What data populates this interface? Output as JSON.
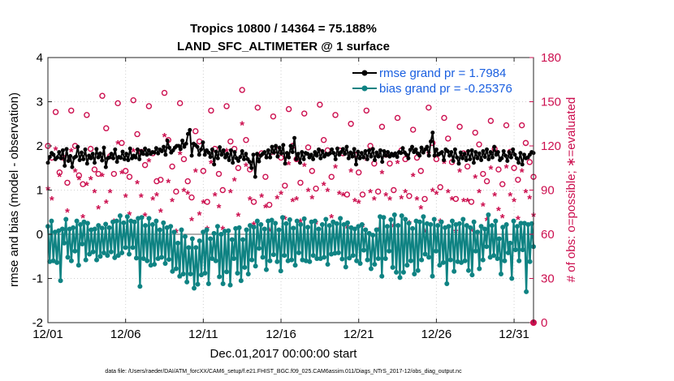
{
  "chart_data": {
    "type": "line",
    "title": "Tropics 10800 / 14364 = 75.188%",
    "subtitle": "LAND_SFC_ALTIMETER @ 1 surface",
    "xlabel": "Dec.01,2017 00:00:00 start",
    "ylabel": "rmse and bias (model - observation)",
    "y2label": "# of obs: o=possible; ∗=evaluated",
    "x_ticks": [
      "12/01",
      "12/06",
      "12/11",
      "12/16",
      "12/21",
      "12/26",
      "12/31"
    ],
    "x_tick_days": [
      0,
      5,
      10,
      15,
      20,
      25,
      30
    ],
    "x_range_days": [
      0,
      31.25
    ],
    "ylim": [
      -2,
      4
    ],
    "yticks": [
      -2,
      -1,
      0,
      1,
      2,
      3,
      4
    ],
    "y2lim": [
      0,
      180
    ],
    "y2ticks": [
      0,
      30,
      60,
      90,
      120,
      150,
      180
    ],
    "zero_line": 0,
    "footnote": "data file: /Users/raeder/DAI/ATM_forcXX/CAM6_setup/f.e21.FHIST_BGC.f09_025.CAM6assim.011/Diags_NTrS_2017-12/obs_diag_output.nc",
    "series": [
      {
        "name": "rmse grand pr = 1.7984",
        "color": "#000000",
        "marker": "filled-circle",
        "axis": "left",
        "values": [
          1.62,
          1.75,
          1.84,
          1.8,
          1.7,
          1.74,
          1.86,
          1.72,
          1.9,
          1.55,
          1.93,
          1.66,
          1.77,
          1.52,
          1.73,
          1.76,
          1.98,
          1.68,
          1.85,
          1.7,
          1.92,
          1.6,
          1.78,
          1.72,
          1.82,
          1.62,
          1.93,
          1.74,
          1.83,
          1.67,
          1.96,
          1.52,
          1.72,
          1.74,
          1.82,
          1.72,
          1.92,
          1.64,
          1.75,
          1.73,
          1.87,
          1.7,
          1.82,
          1.68,
          1.94,
          1.72,
          1.78,
          1.74,
          1.92,
          1.7,
          1.88,
          1.82,
          1.94,
          1.8,
          1.9,
          1.82,
          1.86,
          1.85,
          1.95,
          1.83,
          1.92,
          1.88,
          1.98,
          1.8,
          2.12,
          1.96,
          1.85,
          1.9,
          1.96,
          2.0,
          2.0,
          1.93,
          2.12,
          1.98,
          2.05,
          2.27,
          2.36,
          1.78,
          2.05,
          2.02,
          1.98,
          1.8,
          1.92,
          2.08,
          1.8,
          1.9,
          1.85,
          1.75,
          1.92,
          1.58,
          1.87,
          1.72,
          1.97,
          1.8,
          1.9,
          1.74,
          1.82,
          1.68,
          1.9,
          1.62,
          1.86,
          1.72,
          1.66,
          1.75,
          1.88,
          1.7,
          1.82,
          1.7,
          1.64,
          1.5,
          1.8,
          1.3,
          1.82,
          1.65,
          1.78,
          1.82,
          1.86,
          1.74,
          1.9,
          1.74,
          1.98,
          1.85,
          2.0,
          1.76,
          1.96,
          1.83,
          2.02,
          1.6,
          1.84,
          1.74,
          2.0,
          1.86,
          2.18,
          1.7,
          1.82,
          1.62,
          1.86,
          1.7,
          1.84,
          1.82,
          1.74,
          1.8,
          1.7,
          1.86,
          1.78,
          1.92,
          1.72,
          1.88,
          1.76,
          1.82,
          1.8,
          1.83,
          1.92,
          1.84,
          1.7,
          1.94,
          1.8,
          1.86,
          1.93,
          1.82,
          1.98,
          1.72,
          1.85,
          1.76,
          1.93,
          1.58,
          1.87,
          1.72,
          1.84,
          1.74,
          1.88,
          1.7,
          1.9,
          1.76,
          1.93,
          1.68,
          1.85,
          1.76,
          1.9,
          1.64,
          1.88,
          1.78,
          1.86,
          1.76,
          1.82,
          1.78,
          1.83,
          1.75,
          1.86,
          1.84,
          1.95,
          1.85,
          1.8,
          1.72,
          1.91,
          1.98,
          1.86,
          1.92,
          1.83,
          1.78,
          1.96,
          1.85,
          1.92,
          1.98,
          1.78,
          2.1,
          2.3,
          1.78,
          1.92,
          1.8,
          1.83,
          1.86,
          1.68,
          1.92,
          1.88,
          1.78,
          1.86,
          1.66,
          1.92,
          1.74,
          1.6,
          1.85,
          1.72,
          1.82,
          1.68,
          1.88,
          1.7,
          1.9,
          1.62,
          1.86,
          1.72,
          1.83,
          1.68,
          1.88,
          1.75,
          1.92,
          1.7,
          1.86,
          1.74,
          1.98,
          1.8,
          1.86,
          1.68,
          1.72,
          1.88,
          1.78,
          1.66,
          1.86,
          1.74,
          1.92,
          1.8,
          1.72,
          1.62,
          1.84,
          1.58,
          1.8,
          1.72,
          1.74,
          1.8,
          1.86,
          1.84
        ]
      },
      {
        "name": "bias grand pr = -0.25376",
        "color": "#0f8383",
        "marker": "filled-circle",
        "axis": "left",
        "values": [
          0.18,
          -0.62,
          0.3,
          -0.6,
          0.05,
          -0.64,
          0.08,
          -1.05,
          0.12,
          -0.2,
          0.34,
          -0.52,
          0.12,
          -0.6,
          0.15,
          -0.38,
          0.3,
          -0.7,
          0.22,
          -0.22,
          0.28,
          -0.58,
          0.25,
          -0.45,
          0.1,
          -0.4,
          0.12,
          -0.58,
          0.2,
          -0.5,
          0.14,
          -0.42,
          0.23,
          -0.48,
          0.15,
          -0.4,
          0.28,
          -0.53,
          0.3,
          -0.48,
          0.42,
          -0.42,
          0.26,
          -0.3,
          0.4,
          -0.45,
          0.3,
          -0.3,
          0.28,
          -0.54,
          0.36,
          -1.18,
          0.38,
          -0.55,
          0.2,
          -0.6,
          0.36,
          -0.7,
          0.22,
          -0.68,
          0.3,
          -0.55,
          0.1,
          -0.52,
          0.26,
          -0.66,
          0.15,
          -0.57,
          0.18,
          -0.84,
          0.05,
          -0.78,
          -0.2,
          -0.95,
          0.1,
          -0.9,
          -0.05,
          -1.08,
          -0.3,
          -0.9,
          -0.1,
          -1.22,
          -0.3,
          -1.13,
          -0.15,
          -0.92,
          0.05,
          -0.88,
          0.1,
          -1.12,
          -0.1,
          -0.55,
          0.02,
          -0.6,
          0.18,
          -0.96,
          0.0,
          -1.12,
          0.07,
          -0.85,
          0.08,
          -1.15,
          -0.12,
          -0.55,
          0.13,
          -0.88,
          0.15,
          -1.05,
          -0.12,
          -0.75,
          0.1,
          -0.9,
          0.2,
          -0.58,
          0.16,
          -0.72,
          0.3,
          -0.32,
          0.22,
          -0.52,
          0.12,
          -0.8,
          0.3,
          -0.6,
          0.32,
          -0.46,
          0.25,
          -0.62,
          0.1,
          -0.83,
          0.38,
          -0.48,
          0.24,
          -0.6,
          0.33,
          -0.58,
          0.14,
          -0.7,
          0.3,
          -0.42,
          0.22,
          -0.58,
          0.35,
          -0.6,
          0.16,
          -0.62,
          0.28,
          -0.48,
          0.3,
          -0.55,
          0.12,
          -0.55,
          0.22,
          -0.52,
          0.34,
          -0.68,
          0.2,
          -0.45,
          0.28,
          -0.43,
          0.24,
          -0.42,
          0.36,
          -0.56,
          0.22,
          -0.74,
          0.26,
          -0.54,
          0.15,
          -0.48,
          0.12,
          -0.6,
          0.18,
          -0.66,
          0.22,
          -0.36,
          0.1,
          -0.58,
          0.02,
          -0.78,
          -0.02,
          -0.68,
          0.1,
          -0.55,
          0.4,
          -0.95,
          0.38,
          -0.55,
          0.18,
          -0.38,
          0.33,
          -0.75,
          0.44,
          -0.86,
          0.2,
          -0.98,
          0.42,
          -0.86,
          0.34,
          -0.7,
          0.25,
          -0.6,
          0.13,
          -0.9,
          0.3,
          -0.82,
          0.28,
          -0.58,
          0.4,
          -0.45,
          0.24,
          -0.52,
          0.22,
          -0.95,
          0.34,
          -0.38,
          0.2,
          -0.7,
          0.28,
          -0.64,
          0.15,
          -1.12,
          0.18,
          -0.58,
          0.3,
          -0.84,
          0.22,
          -0.62,
          0.24,
          -0.64,
          0.34,
          -0.6,
          0.2,
          -0.82,
          0.15,
          -0.92,
          0.28,
          -0.38,
          0.05,
          -0.78,
          0.18,
          -0.58,
          0.12,
          -0.28,
          0.44,
          -0.52,
          0.2,
          -0.48,
          0.3,
          -0.55,
          -0.1,
          -0.9,
          0.16,
          -0.6,
          0.22,
          -0.42,
          -0.2,
          -1.0,
          0.3,
          -0.35,
          0.18,
          -0.6,
          0.25,
          -0.35,
          0.25,
          -1.3,
          0.22,
          -0.62,
          0.24,
          -0.28
        ]
      },
      {
        "name": "obs possible",
        "color": "#cc0f4f",
        "marker": "open-circle",
        "axis": "right",
        "days": [
          0.0,
          0.25,
          0.5,
          0.75,
          1.0,
          1.25,
          1.5,
          1.75,
          2.0,
          2.25,
          2.5,
          2.75,
          3.0,
          3.25,
          3.5,
          3.75,
          4.0,
          4.25,
          4.5,
          4.75,
          5.0,
          5.25,
          5.5,
          5.75,
          6.0,
          6.25,
          6.5,
          6.75,
          7.0,
          7.25,
          7.5,
          7.75,
          8.0,
          8.25,
          8.5,
          8.75,
          9.0,
          9.25,
          9.5,
          9.75,
          10.0,
          10.25,
          10.5,
          10.75,
          11.0,
          11.25,
          11.5,
          11.75,
          12.0,
          12.25,
          12.5,
          12.75,
          13.0,
          13.25,
          13.5,
          13.75,
          14.0,
          14.25,
          14.5,
          14.75,
          15.0,
          15.25,
          15.5,
          15.75,
          16.0,
          16.25,
          16.5,
          16.75,
          17.0,
          17.25,
          17.5,
          17.75,
          18.0,
          18.25,
          18.5,
          18.75,
          19.0,
          19.25,
          19.5,
          19.75,
          20.0,
          20.25,
          20.5,
          20.75,
          21.0,
          21.25,
          21.5,
          21.75,
          22.0,
          22.25,
          22.5,
          22.75,
          23.0,
          23.25,
          23.5,
          23.75,
          24.0,
          24.25,
          24.5,
          24.75,
          25.0,
          25.25,
          25.5,
          25.75,
          26.0,
          26.25,
          26.5,
          26.75,
          27.0,
          27.25,
          27.5,
          27.75,
          28.0,
          28.25,
          28.5,
          28.75,
          29.0,
          29.25,
          29.5,
          29.75,
          30.0,
          30.25,
          30.5,
          30.75,
          31.0,
          31.25
        ],
        "values": [
          120,
          112,
          143,
          102,
          112,
          95,
          144,
          120,
          100,
          94,
          141,
          118,
          104,
          101,
          154,
          132,
          113,
          101,
          149,
          122,
          103,
          99,
          151,
          128,
          116,
          107,
          147,
          115,
          96,
          97,
          156,
          124,
          106,
          89,
          149,
          111,
          96,
          85,
          130,
          123,
          103,
          82,
          144,
          118,
          101,
          90,
          147,
          123,
          118,
          105,
          158,
          124,
          104,
          82,
          146,
          115,
          99,
          80,
          140,
          117,
          112,
          93,
          145,
          120,
          111,
          95,
          142,
          119,
          103,
          91,
          148,
          124,
          117,
          99,
          141,
          117,
          115,
          87,
          135,
          114,
          102,
          87,
          144,
          120,
          108,
          89,
          133,
          114,
          108,
          90,
          139,
          117,
          111,
          86,
          131,
          112,
          103,
          84,
          146,
          122,
          111,
          92,
          139,
          125,
          109,
          84,
          133,
          115,
          106,
          82,
          129,
          121,
          101,
          96,
          137,
          118,
          104,
          94,
          134,
          116,
          105,
          97,
          134,
          122,
          109,
          99
        ]
      },
      {
        "name": "obs evaluated",
        "color": "#cc0f4f",
        "marker": "asterisk",
        "axis": "right",
        "days": [
          0.0,
          0.25,
          0.5,
          0.75,
          1.0,
          1.25,
          1.5,
          1.75,
          2.0,
          2.25,
          2.5,
          2.75,
          3.0,
          3.25,
          3.5,
          3.75,
          4.0,
          4.25,
          4.5,
          4.75,
          5.0,
          5.25,
          5.5,
          5.75,
          6.0,
          6.25,
          6.5,
          6.75,
          7.0,
          7.25,
          7.5,
          7.75,
          8.0,
          8.25,
          8.5,
          8.75,
          9.0,
          9.25,
          9.5,
          9.75,
          10.0,
          10.25,
          10.5,
          10.75,
          11.0,
          11.25,
          11.5,
          11.75,
          12.0,
          12.25,
          12.5,
          12.75,
          13.0,
          13.25,
          13.5,
          13.75,
          14.0,
          14.25,
          14.5,
          14.75,
          15.0,
          15.25,
          15.5,
          15.75,
          16.0,
          16.25,
          16.5,
          16.75,
          17.0,
          17.25,
          17.5,
          17.75,
          18.0,
          18.25,
          18.5,
          18.75,
          19.0,
          19.25,
          19.5,
          19.75,
          20.0,
          20.25,
          20.5,
          20.75,
          21.0,
          21.25,
          21.5,
          21.75,
          22.0,
          22.25,
          22.5,
          22.75,
          23.0,
          23.25,
          23.5,
          23.75,
          24.0,
          24.25,
          24.5,
          24.75,
          25.0,
          25.25,
          25.5,
          25.75,
          26.0,
          26.25,
          26.5,
          26.75,
          27.0,
          27.25,
          27.5,
          27.75,
          28.0,
          28.25,
          28.5,
          28.75,
          29.0,
          29.25,
          29.5,
          29.75,
          30.0,
          30.25,
          30.5,
          30.75,
          31.0,
          31.25
        ],
        "values": [
          90,
          83,
          117,
          99,
          111,
          75,
          116,
          102,
          97,
          71,
          93,
          97,
          88,
          77,
          99,
          81,
          88,
          68,
          121,
          101,
          85,
          73,
          116,
          94,
          85,
          72,
          109,
          83,
          86,
          75,
          126,
          95,
          82,
          61,
          114,
          89,
          87,
          69,
          102,
          73,
          81,
          63,
          108,
          86,
          78,
          63,
          116,
          88,
          96,
          72,
          134,
          106,
          83,
          66,
          113,
          85,
          78,
          62,
          114,
          84,
          87,
          70,
          107,
          82,
          83,
          68,
          106,
          89,
          84,
          67,
          116,
          93,
          89,
          71,
          105,
          87,
          86,
          64,
          102,
          82,
          81,
          65,
          110,
          88,
          83,
          62,
          101,
          86,
          83,
          65,
          108,
          84,
          88,
          67,
          99,
          83,
          77,
          61,
          114,
          89,
          87,
          68,
          108,
          88,
          83,
          61,
          102,
          82,
          82,
          62,
          98,
          88,
          79,
          69,
          104,
          86,
          76,
          71,
          105,
          86,
          82,
          70,
          102,
          88,
          84,
          72
        ]
      }
    ]
  }
}
